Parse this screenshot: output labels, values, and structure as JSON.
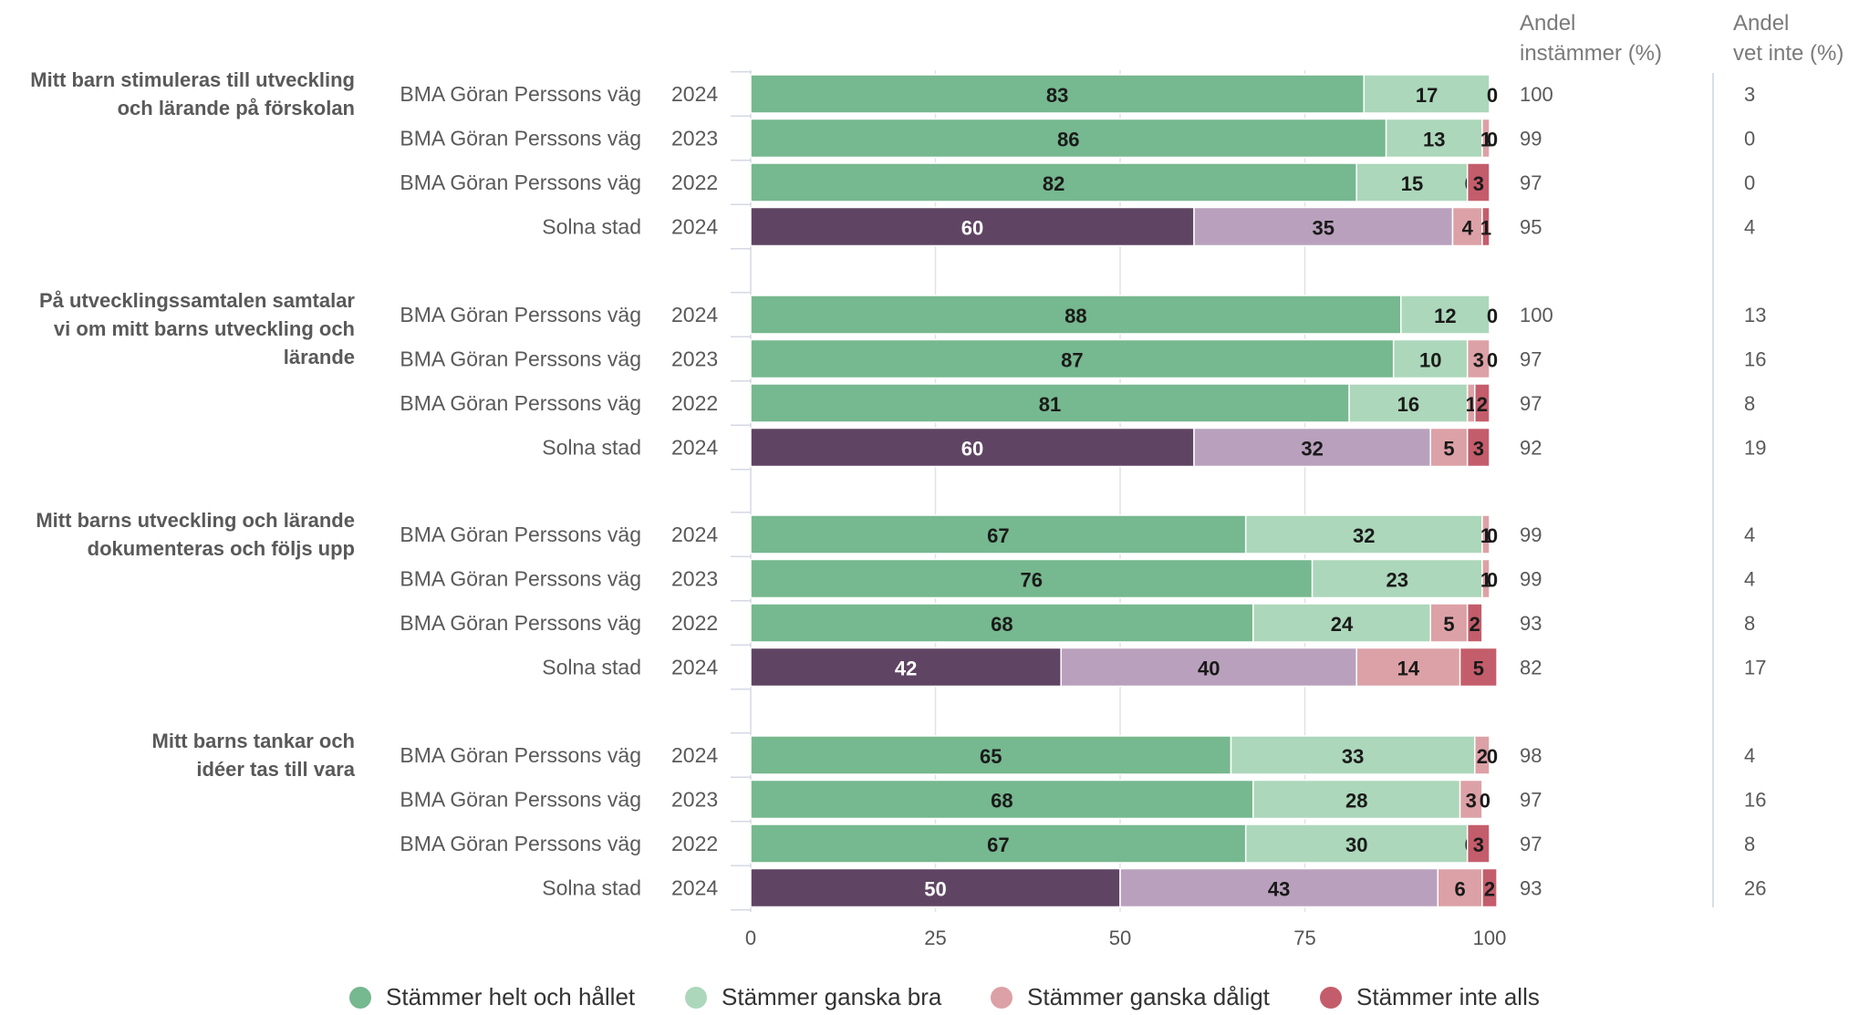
{
  "chart_data": {
    "type": "bar",
    "orientation": "horizontal",
    "stacked": true,
    "xlim": [
      0,
      100
    ],
    "x_ticks": [
      "0",
      "25",
      "50",
      "75",
      "100"
    ],
    "grid": true,
    "legend_position": "bottom",
    "column_headers": {
      "share_agree": [
        "Andel",
        "instämmer (%)"
      ],
      "share_dont_know": [
        "Andel",
        "vet inte (%)"
      ]
    },
    "series": [
      {
        "name": "Stämmer helt och hållet",
        "color": "#76b88f",
        "solna_color": "#5f4563"
      },
      {
        "name": "Stämmer ganska bra",
        "color": "#acd7ba",
        "solna_color": "#b9a1bd"
      },
      {
        "name": "Stämmer ganska dåligt",
        "color": "#dca1a6",
        "solna_color": "#dca1a6"
      },
      {
        "name": "Stämmer inte alls",
        "color": "#c45d6b",
        "solna_color": "#c45d6b"
      }
    ],
    "groups": [
      {
        "question": [
          "Mitt barn stimuleras till utveckling",
          "och lärande på förskolan"
        ],
        "rows": [
          {
            "unit": "BMA Göran Perssons väg",
            "year": "2024",
            "values": [
              83,
              17,
              0,
              0
            ],
            "labels": [
              "83",
              "17",
              "0",
              ""
            ],
            "agree": "100",
            "dont_know": "3"
          },
          {
            "unit": "BMA Göran Perssons väg",
            "year": "2023",
            "values": [
              86,
              13,
              1,
              0
            ],
            "labels": [
              "86",
              "13",
              "1",
              "0"
            ],
            "agree": "99",
            "dont_know": "0"
          },
          {
            "unit": "BMA Göran Perssons väg",
            "year": "2022",
            "values": [
              82,
              15,
              0,
              3
            ],
            "labels": [
              "82",
              "15",
              "0",
              "3"
            ],
            "agree": "97",
            "dont_know": "0"
          },
          {
            "unit": "Solna stad",
            "year": "2024",
            "values": [
              60,
              35,
              4,
              1
            ],
            "labels": [
              "60",
              "35",
              "4",
              "1"
            ],
            "agree": "95",
            "dont_know": "4"
          }
        ]
      },
      {
        "question": [
          "På utvecklingssamtalen samtalar",
          "vi om mitt barns utveckling och",
          "lärande"
        ],
        "rows": [
          {
            "unit": "BMA Göran Perssons väg",
            "year": "2024",
            "values": [
              88,
              12,
              0,
              0
            ],
            "labels": [
              "88",
              "12",
              "0",
              ""
            ],
            "agree": "100",
            "dont_know": "13"
          },
          {
            "unit": "BMA Göran Perssons väg",
            "year": "2023",
            "values": [
              87,
              10,
              3,
              0
            ],
            "labels": [
              "87",
              "10",
              "3",
              "0"
            ],
            "agree": "97",
            "dont_know": "16"
          },
          {
            "unit": "BMA Göran Perssons väg",
            "year": "2022",
            "values": [
              81,
              16,
              1,
              2
            ],
            "labels": [
              "81",
              "16",
              "1",
              "2"
            ],
            "agree": "97",
            "dont_know": "8"
          },
          {
            "unit": "Solna stad",
            "year": "2024",
            "values": [
              60,
              32,
              5,
              3
            ],
            "labels": [
              "60",
              "32",
              "5",
              "3"
            ],
            "agree": "92",
            "dont_know": "19"
          }
        ]
      },
      {
        "question": [
          "Mitt barns utveckling och lärande",
          "dokumenteras och följs upp"
        ],
        "rows": [
          {
            "unit": "BMA Göran Perssons väg",
            "year": "2024",
            "values": [
              67,
              32,
              1,
              0
            ],
            "labels": [
              "67",
              "32",
              "1",
              "0"
            ],
            "agree": "99",
            "dont_know": "4"
          },
          {
            "unit": "BMA Göran Perssons väg",
            "year": "2023",
            "values": [
              76,
              23,
              1,
              0
            ],
            "labels": [
              "76",
              "23",
              "1",
              "0"
            ],
            "agree": "99",
            "dont_know": "4"
          },
          {
            "unit": "BMA Göran Perssons väg",
            "year": "2022",
            "values": [
              68,
              24,
              5,
              2
            ],
            "labels": [
              "68",
              "24",
              "5",
              "2"
            ],
            "agree": "93",
            "dont_know": "8"
          },
          {
            "unit": "Solna stad",
            "year": "2024",
            "values": [
              42,
              40,
              14,
              5
            ],
            "labels": [
              "42",
              "40",
              "14",
              "5"
            ],
            "agree": "82",
            "dont_know": "17"
          }
        ]
      },
      {
        "question": [
          "Mitt barns tankar och",
          "idéer tas till vara"
        ],
        "rows": [
          {
            "unit": "BMA Göran Perssons väg",
            "year": "2024",
            "values": [
              65,
              33,
              2,
              0
            ],
            "labels": [
              "65",
              "33",
              "2",
              "0"
            ],
            "agree": "98",
            "dont_know": "4"
          },
          {
            "unit": "BMA Göran Perssons väg",
            "year": "2023",
            "values": [
              68,
              28,
              3,
              0
            ],
            "labels": [
              "68",
              "28",
              "3",
              "0"
            ],
            "agree": "97",
            "dont_know": "16"
          },
          {
            "unit": "BMA Göran Perssons väg",
            "year": "2022",
            "values": [
              67,
              30,
              0,
              3
            ],
            "labels": [
              "67",
              "30",
              "0",
              "3"
            ],
            "agree": "97",
            "dont_know": "8"
          },
          {
            "unit": "Solna stad",
            "year": "2024",
            "values": [
              50,
              43,
              6,
              2
            ],
            "labels": [
              "50",
              "43",
              "6",
              "2"
            ],
            "agree": "93",
            "dont_know": "26"
          }
        ]
      }
    ]
  }
}
